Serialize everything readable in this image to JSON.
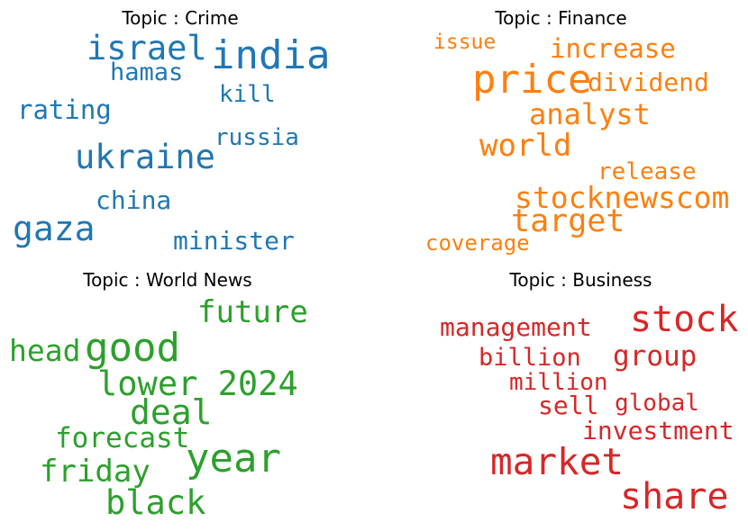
{
  "chart_data": [
    {
      "type": "wordcloud",
      "title": "Topic : Crime",
      "color": "#1f77b4",
      "words": [
        {
          "text": "india",
          "weight": 1.0
        },
        {
          "text": "israel",
          "weight": 0.88
        },
        {
          "text": "hamas",
          "weight": 0.62
        },
        {
          "text": "kill",
          "weight": 0.6
        },
        {
          "text": "rating",
          "weight": 0.68
        },
        {
          "text": "russia",
          "weight": 0.6
        },
        {
          "text": "ukraine",
          "weight": 0.9
        },
        {
          "text": "china",
          "weight": 0.65
        },
        {
          "text": "gaza",
          "weight": 0.92
        },
        {
          "text": "minister",
          "weight": 0.65
        }
      ]
    },
    {
      "type": "wordcloud",
      "title": "Topic : Finance",
      "color": "#ff7f0e",
      "words": [
        {
          "text": "issue",
          "weight": 0.55
        },
        {
          "text": "increase",
          "weight": 0.72
        },
        {
          "text": "price",
          "weight": 1.0
        },
        {
          "text": "dividend",
          "weight": 0.7
        },
        {
          "text": "analyst",
          "weight": 0.78
        },
        {
          "text": "world",
          "weight": 0.8
        },
        {
          "text": "release",
          "weight": 0.62
        },
        {
          "text": "stocknewscom",
          "weight": 0.82
        },
        {
          "text": "target",
          "weight": 0.85
        },
        {
          "text": "coverage",
          "weight": 0.58
        }
      ]
    },
    {
      "type": "wordcloud",
      "title": "Topic : World News",
      "color": "#2ca02c",
      "words": [
        {
          "text": "future",
          "weight": 0.8
        },
        {
          "text": "head",
          "weight": 0.78
        },
        {
          "text": "good",
          "weight": 1.0
        },
        {
          "text": "lower 2024",
          "weight": 0.88
        },
        {
          "text": "deal",
          "weight": 0.9
        },
        {
          "text": "forecast",
          "weight": 0.75
        },
        {
          "text": "year",
          "weight": 1.0
        },
        {
          "text": "friday",
          "weight": 0.8
        },
        {
          "text": "black",
          "weight": 0.88
        }
      ]
    },
    {
      "type": "wordcloud",
      "title": "Topic : Business",
      "color": "#d62728",
      "words": [
        {
          "text": "stock",
          "weight": 0.92
        },
        {
          "text": "management",
          "weight": 0.7
        },
        {
          "text": "billion",
          "weight": 0.68
        },
        {
          "text": "group",
          "weight": 0.75
        },
        {
          "text": "million",
          "weight": 0.66
        },
        {
          "text": "sell",
          "weight": 0.7
        },
        {
          "text": "global",
          "weight": 0.65
        },
        {
          "text": "investment",
          "weight": 0.7
        },
        {
          "text": "market",
          "weight": 1.0
        },
        {
          "text": "share",
          "weight": 1.0
        }
      ]
    }
  ]
}
